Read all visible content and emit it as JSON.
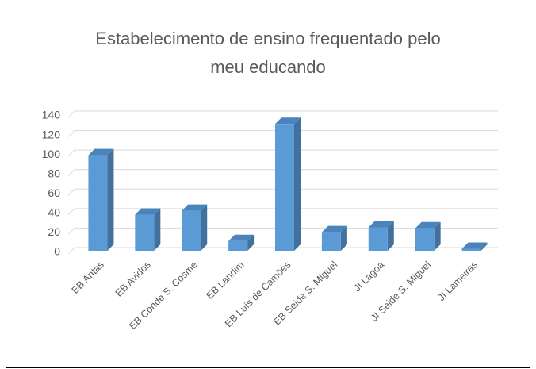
{
  "chart_data": {
    "type": "bar3d",
    "title": "Estabelecimento de ensino frequentado pelo meu educando",
    "categories": [
      "EB Antas",
      "EB Avidos",
      "EB Conde S. Cosme",
      "EB Landim",
      "EB Luís de Camões",
      "EB Seide S. Miguel",
      "JI Lagoa",
      "JI Seide S. Miguel",
      "JI  Lameiras"
    ],
    "values": [
      98,
      37,
      41,
      10,
      130,
      19,
      24,
      23,
      2
    ],
    "color": "#5b9bd5",
    "ylim": [
      0,
      140
    ],
    "yticks": [
      0,
      20,
      40,
      60,
      80,
      100,
      120,
      140
    ],
    "grid": true
  }
}
